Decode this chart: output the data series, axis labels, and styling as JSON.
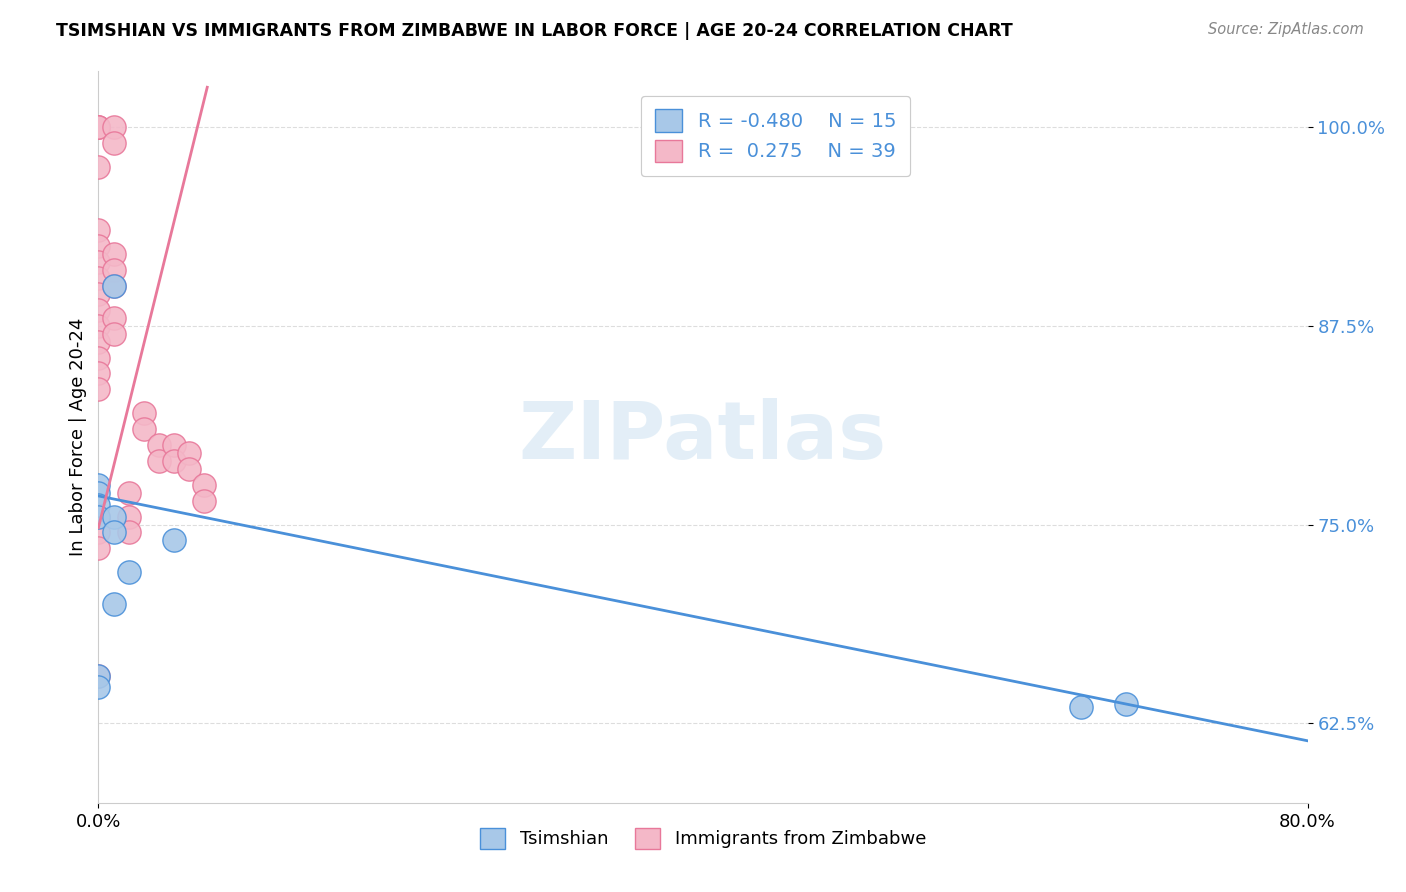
{
  "title": "TSIMSHIAN VS IMMIGRANTS FROM ZIMBABWE IN LABOR FORCE | AGE 20-24 CORRELATION CHART",
  "source": "Source: ZipAtlas.com",
  "ylabel": "In Labor Force | Age 20-24",
  "y_ticks": [
    0.625,
    0.75,
    0.875,
    1.0
  ],
  "y_tick_labels": [
    "62.5%",
    "75.0%",
    "87.5%",
    "100.0%"
  ],
  "xlim": [
    0.0,
    0.8
  ],
  "ylim": [
    0.575,
    1.035
  ],
  "tsimshian_color": "#a8c8e8",
  "zimbabwe_color": "#f4b8c8",
  "tsimshian_line_color": "#4a90d9",
  "zimbabwe_line_color": "#e8789a",
  "tsimshian_x": [
    0.0,
    0.0,
    0.0,
    0.0,
    0.01,
    0.01,
    0.01,
    0.02,
    0.05,
    0.65,
    0.68,
    0.0,
    0.0,
    0.01
  ],
  "tsimshian_y": [
    0.775,
    0.77,
    0.762,
    0.755,
    0.9,
    0.755,
    0.745,
    0.72,
    0.74,
    0.635,
    0.637,
    0.655,
    0.648,
    0.7
  ],
  "zimbabwe_x": [
    0.0,
    0.0,
    0.0,
    0.0,
    0.0,
    0.0,
    0.0,
    0.0,
    0.0,
    0.0,
    0.0,
    0.0,
    0.01,
    0.01,
    0.01,
    0.01,
    0.01,
    0.01,
    0.01,
    0.02,
    0.02,
    0.02,
    0.03,
    0.03,
    0.04,
    0.04,
    0.05,
    0.05,
    0.06,
    0.06,
    0.07,
    0.07,
    0.0,
    0.0,
    0.0,
    0.0,
    0.0,
    0.0,
    0.0
  ],
  "zimbabwe_y": [
    1.0,
    1.0,
    1.0,
    0.975,
    0.935,
    0.925,
    0.915,
    0.905,
    0.895,
    0.885,
    0.875,
    0.865,
    1.0,
    0.99,
    0.92,
    0.91,
    0.9,
    0.88,
    0.87,
    0.77,
    0.755,
    0.745,
    0.82,
    0.81,
    0.8,
    0.79,
    0.8,
    0.79,
    0.795,
    0.785,
    0.775,
    0.765,
    0.855,
    0.845,
    0.835,
    0.755,
    0.745,
    0.735,
    0.655
  ],
  "tsi_line_x": [
    0.0,
    0.8
  ],
  "tsi_line_y": [
    0.768,
    0.614
  ],
  "zim_line_x": [
    0.0,
    0.072
  ],
  "zim_line_y": [
    0.748,
    1.025
  ],
  "watermark": "ZIPatlas",
  "background_color": "#ffffff",
  "grid_color": "#dddddd"
}
